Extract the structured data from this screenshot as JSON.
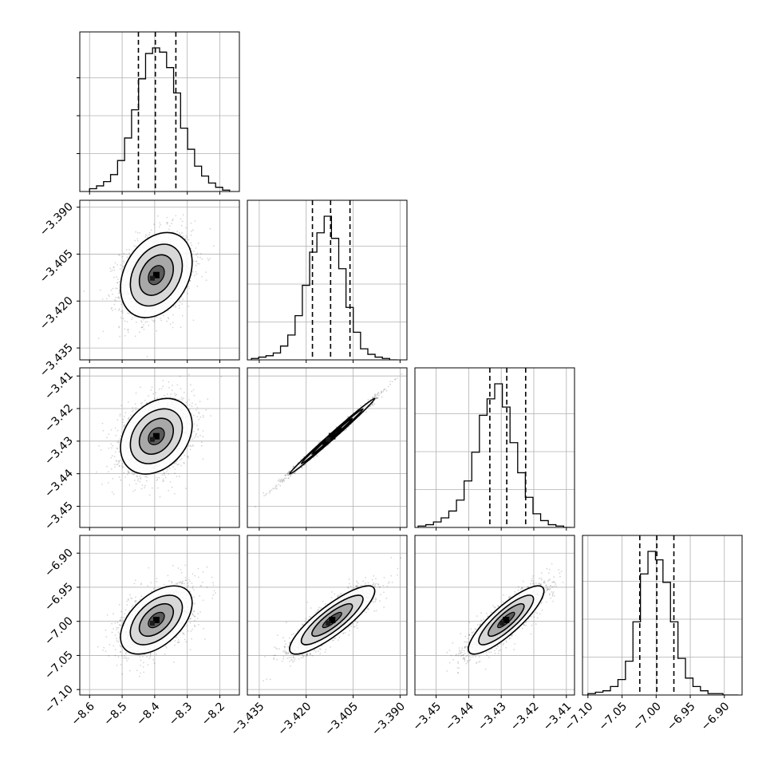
{
  "chart_data": {
    "type": "corner",
    "grid": true,
    "params": [
      {
        "range": [
          -8.63,
          -8.14
        ],
        "ticks": [
          -8.6,
          -8.5,
          -8.4,
          -8.3,
          -8.2
        ],
        "tick_labels": [
          "−8.6",
          "−8.5",
          "−8.4",
          "−8.3",
          "−8.2"
        ],
        "mean": -8.395,
        "sd": 0.055
      },
      {
        "range": [
          -3.4388,
          -3.3878
        ],
        "ticks": [
          -3.435,
          -3.42,
          -3.405,
          -3.39
        ],
        "tick_labels": [
          "−3.435",
          "−3.420",
          "−3.405",
          "−3.390"
        ],
        "mean": -3.4117,
        "sd": 0.0068
      },
      {
        "range": [
          -3.4565,
          -3.4075
        ],
        "ticks": [
          -3.45,
          -3.44,
          -3.43,
          -3.42,
          -3.41
        ],
        "tick_labels": [
          "−3.45",
          "−3.44",
          "−3.43",
          "−3.42",
          "−3.41"
        ],
        "mean": -3.4285,
        "sd": 0.0058
      },
      {
        "range": [
          -7.108,
          -6.874
        ],
        "ticks": [
          -7.1,
          -7.05,
          -7.0,
          -6.95,
          -6.9
        ],
        "tick_labels": [
          "−7.10",
          "−7.05",
          "−7.00",
          "−6.95",
          "−6.90"
        ],
        "mean": -6.998,
        "sd": 0.025
      }
    ],
    "quantiles": [
      [
        -8.45,
        -8.398,
        -8.335
      ],
      [
        -3.418,
        -3.4122,
        -3.406
      ],
      [
        -3.4335,
        -3.4283,
        -3.4225
      ],
      [
        -7.024,
        -6.999,
        -6.974
      ]
    ],
    "histograms": [
      {
        "edges_x": [
          -8.6,
          -8.17
        ],
        "counts": [
          2,
          4,
          7,
          12,
          22,
          38,
          58,
          80,
          98,
          102,
          99,
          88,
          70,
          45,
          30,
          18,
          11,
          6,
          3,
          1
        ]
      },
      {
        "edges_x": [
          -3.4375,
          -3.391
        ],
        "counts": [
          1,
          2,
          3,
          5,
          10,
          18,
          32,
          54,
          78,
          92,
          104,
          88,
          66,
          38,
          20,
          8,
          4,
          2,
          1,
          0
        ]
      },
      {
        "edges_x": [
          -3.4555,
          -3.4085
        ],
        "counts": [
          1,
          2,
          4,
          7,
          12,
          20,
          34,
          55,
          82,
          94,
          105,
          88,
          62,
          40,
          22,
          10,
          5,
          2,
          1,
          0
        ]
      },
      {
        "edges_x": [
          -7.1,
          -6.88
        ],
        "counts": [
          1,
          2,
          3,
          6,
          11,
          24,
          52,
          86,
          102,
          96,
          80,
          52,
          26,
          12,
          6,
          3,
          1,
          1,
          0,
          0
        ]
      }
    ],
    "correlations": {
      "1-0": 0.3,
      "2-0": 0.3,
      "2-1": 0.995,
      "3-0": 0.5,
      "3-1": 0.85,
      "3-2": 0.85
    }
  }
}
